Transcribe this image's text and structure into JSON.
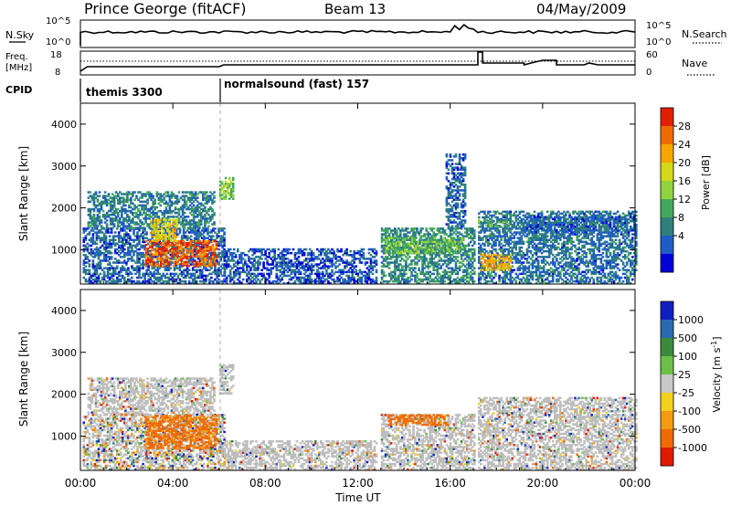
{
  "header": {
    "station": "Prince George (fitACF)",
    "beam": "Beam 13",
    "date": "04/May/2009"
  },
  "strip_labels": {
    "nsky": "N.Sky",
    "nsearch": "N.Search",
    "nsky_top": "10^5",
    "nsky_bot": "10^0",
    "nsearch_top": "10^5",
    "nsearch_bot": "10^0",
    "freq_line1": "Freq.",
    "freq_line2": "[MHz]",
    "freq_top": "18",
    "freq_bot": "8",
    "nave": "Nave",
    "nave_top": "60",
    "nave_bot": "0",
    "cpid": "CPID"
  },
  "cpid_modes": [
    {
      "start_hour": 0.0,
      "label": "themis 3300"
    },
    {
      "start_hour": 6.0,
      "label": "normalsound (fast) 157"
    }
  ],
  "chart_data": [
    {
      "type": "heatmap",
      "panel": "power",
      "xlabel": "",
      "ylabel": "Slant Range [km]",
      "xlim": [
        0,
        24
      ],
      "ylim": [
        180,
        4500
      ],
      "yticks": [
        "1000",
        "2000",
        "3000",
        "4000"
      ],
      "colorbar": {
        "label": "Power [dB]",
        "ticks": [
          "4",
          "8",
          "12",
          "16",
          "20",
          "24",
          "28"
        ],
        "range": [
          0,
          30
        ]
      },
      "patches": [
        {
          "t0": 0.1,
          "t1": 6.2,
          "r0": 180,
          "r1": 1500,
          "value": 6
        },
        {
          "t0": 0.3,
          "t1": 5.8,
          "r0": 1500,
          "r1": 2400,
          "value": 8
        },
        {
          "t0": 2.8,
          "t1": 5.9,
          "r0": 600,
          "r1": 1200,
          "value": 26
        },
        {
          "t0": 3.0,
          "t1": 4.2,
          "r0": 1200,
          "r1": 1700,
          "value": 20
        },
        {
          "t0": 6.0,
          "t1": 6.6,
          "r0": 2200,
          "r1": 2700,
          "value": 14
        },
        {
          "t0": 6.2,
          "t1": 12.8,
          "r0": 180,
          "r1": 1000,
          "value": 5
        },
        {
          "t0": 13.0,
          "t1": 17.0,
          "r0": 180,
          "r1": 1500,
          "value": 9
        },
        {
          "t0": 13.2,
          "t1": 16.5,
          "r0": 900,
          "r1": 1300,
          "value": 13
        },
        {
          "t0": 15.8,
          "t1": 16.6,
          "r0": 1500,
          "r1": 3300,
          "value": 6
        },
        {
          "t0": 17.2,
          "t1": 24.0,
          "r0": 180,
          "r1": 1900,
          "value": 7
        },
        {
          "t0": 17.3,
          "t1": 18.6,
          "r0": 500,
          "r1": 900,
          "value": 21
        },
        {
          "t0": 17.2,
          "t1": 18.6,
          "r0": 1550,
          "r1": 1700,
          "value": 11
        },
        {
          "t0": 19.2,
          "t1": 24.0,
          "r0": 1400,
          "r1": 1800,
          "value": 6
        }
      ]
    },
    {
      "type": "heatmap",
      "panel": "velocity",
      "xlabel": "Time UT",
      "ylabel": "Slant Range [km]",
      "xlim": [
        0,
        24
      ],
      "ylim": [
        180,
        4500
      ],
      "xticks": [
        "00:00",
        "04:00",
        "08:00",
        "12:00",
        "16:00",
        "20:00",
        "00:00"
      ],
      "yticks": [
        "1000",
        "2000",
        "3000",
        "4000"
      ],
      "colorbar": {
        "label": "Velocity [m s^-1]",
        "ticks": [
          "1000",
          "500",
          "100",
          "25",
          "-25",
          "-100",
          "-500",
          "-1000"
        ]
      },
      "patches": [
        {
          "t0": 0.1,
          "t1": 6.2,
          "r0": 180,
          "r1": 1500,
          "value": "low"
        },
        {
          "t0": 0.3,
          "t1": 5.8,
          "r0": 1500,
          "r1": 2400,
          "value": "ground"
        },
        {
          "t0": 2.8,
          "t1": 5.9,
          "r0": 700,
          "r1": 1500,
          "value": "-500"
        },
        {
          "t0": 6.0,
          "t1": 6.6,
          "r0": 2000,
          "r1": 2700,
          "value": "ground"
        },
        {
          "t0": 6.2,
          "t1": 12.8,
          "r0": 180,
          "r1": 900,
          "value": "ground"
        },
        {
          "t0": 13.0,
          "t1": 17.0,
          "r0": 180,
          "r1": 1500,
          "value": "ground"
        },
        {
          "t0": 13.3,
          "t1": 15.9,
          "r0": 1250,
          "r1": 1500,
          "value": "-500"
        },
        {
          "t0": 17.2,
          "t1": 24.0,
          "r0": 180,
          "r1": 1900,
          "value": "ground"
        }
      ]
    }
  ],
  "colors": {
    "scale": [
      "#0000d8",
      "#1e5cc8",
      "#2f7f7a",
      "#43a95a",
      "#8fd43c",
      "#d4d91a",
      "#f7a600",
      "#f06a00",
      "#e22000"
    ],
    "velocity_scale": [
      "#1020c0",
      "#2a6ab0",
      "#3b8a3b",
      "#6cc048",
      "#c8c8c8",
      "#f3d21c",
      "#f39a10",
      "#ef6a00",
      "#e21a00"
    ],
    "ground": "#bdbdbd"
  }
}
